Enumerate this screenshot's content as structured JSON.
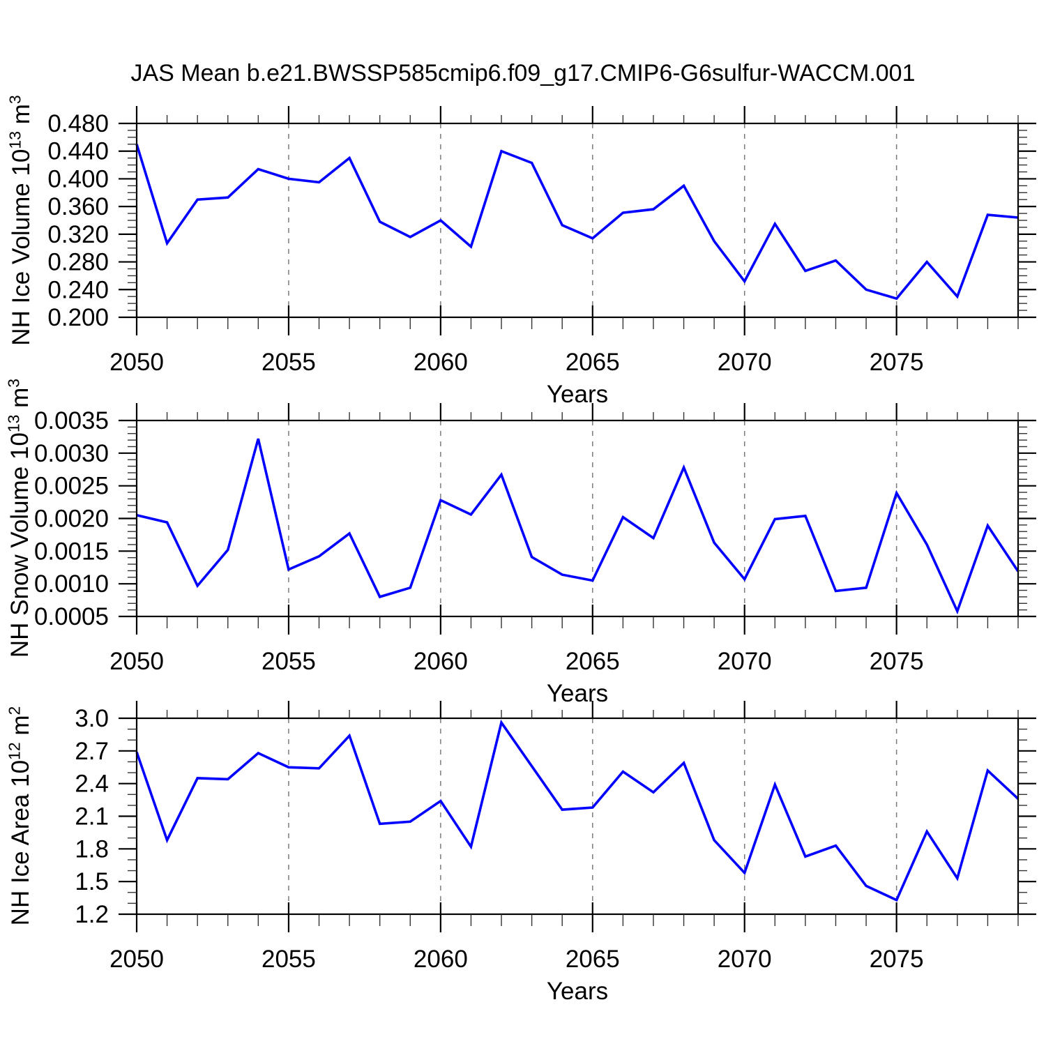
{
  "title": "JAS Mean b.e21.BWSSP585cmip6.f09_g17.CMIP6-G6sulfur-WACCM.001",
  "colors": {
    "line": "#0000ff",
    "grid": "#7b7b7b",
    "axis": "#000000",
    "minor_tick": "#333333"
  },
  "chart_data": [
    {
      "type": "line",
      "name": "nh-ice-volume",
      "ylabel": {
        "base": "NH Ice Volume 10",
        "exp": "13",
        "unit_base": " m",
        "unit_exp": "3"
      },
      "xlabel": "Years",
      "x": [
        2050,
        2051,
        2052,
        2053,
        2054,
        2055,
        2056,
        2057,
        2058,
        2059,
        2060,
        2061,
        2062,
        2063,
        2064,
        2065,
        2066,
        2067,
        2068,
        2069,
        2070,
        2071,
        2072,
        2073,
        2074,
        2075,
        2076,
        2077,
        2078,
        2079
      ],
      "values": [
        0.45,
        0.307,
        0.37,
        0.373,
        0.414,
        0.4,
        0.395,
        0.43,
        0.338,
        0.316,
        0.34,
        0.302,
        0.44,
        0.423,
        0.333,
        0.314,
        0.351,
        0.356,
        0.39,
        0.31,
        0.252,
        0.335,
        0.267,
        0.282,
        0.24,
        0.227,
        0.28,
        0.23,
        0.348,
        0.344
      ],
      "xlim": [
        2050,
        2079
      ],
      "ylim": [
        0.2,
        0.48
      ],
      "yticks": [
        0.2,
        0.24,
        0.28,
        0.32,
        0.36,
        0.4,
        0.44,
        0.48
      ],
      "ytick_labels": [
        "0.200",
        "0.240",
        "0.280",
        "0.320",
        "0.360",
        "0.400",
        "0.440",
        "0.480"
      ],
      "y_minor_step": 0.01,
      "xticks_major": [
        2050,
        2055,
        2060,
        2065,
        2070,
        2075
      ],
      "xtick_labels": [
        "2050",
        "2055",
        "2060",
        "2065",
        "2070",
        "2075"
      ],
      "x_minor_step": 1,
      "gridlines_x": [
        2055,
        2060,
        2065,
        2070,
        2075
      ],
      "grid": true,
      "legend": null
    },
    {
      "type": "line",
      "name": "nh-snow-volume",
      "ylabel": {
        "base": "NH Snow Volume 10",
        "exp": "13",
        "unit_base": " m",
        "unit_exp": "3"
      },
      "xlabel": "Years",
      "x": [
        2050,
        2051,
        2052,
        2053,
        2054,
        2055,
        2056,
        2057,
        2058,
        2059,
        2060,
        2061,
        2062,
        2063,
        2064,
        2065,
        2066,
        2067,
        2068,
        2069,
        2070,
        2071,
        2072,
        2073,
        2074,
        2075,
        2076,
        2077,
        2078,
        2079
      ],
      "values": [
        0.00205,
        0.00194,
        0.00097,
        0.00152,
        0.00322,
        0.00122,
        0.00142,
        0.00177,
        0.0008,
        0.00094,
        0.00228,
        0.00206,
        0.00267,
        0.00141,
        0.00114,
        0.00105,
        0.00202,
        0.0017,
        0.00278,
        0.00163,
        0.00107,
        0.00199,
        0.00204,
        0.00089,
        0.00094,
        0.00239,
        0.0016,
        0.00058,
        0.00189,
        0.00119
      ],
      "xlim": [
        2050,
        2079
      ],
      "ylim": [
        0.0005,
        0.0035
      ],
      "yticks": [
        0.0005,
        0.001,
        0.0015,
        0.002,
        0.0025,
        0.003,
        0.0035
      ],
      "ytick_labels": [
        "0.0005",
        "0.0010",
        "0.0015",
        "0.0020",
        "0.0025",
        "0.0030",
        "0.0035"
      ],
      "y_minor_step": 0.0001,
      "xticks_major": [
        2050,
        2055,
        2060,
        2065,
        2070,
        2075
      ],
      "xtick_labels": [
        "2050",
        "2055",
        "2060",
        "2065",
        "2070",
        "2075"
      ],
      "x_minor_step": 1,
      "gridlines_x": [
        2055,
        2060,
        2065,
        2070,
        2075
      ],
      "grid": true,
      "legend": null
    },
    {
      "type": "line",
      "name": "nh-ice-area",
      "ylabel": {
        "base": "NH Ice Area 10",
        "exp": "12",
        "unit_base": " m",
        "unit_exp": "2"
      },
      "xlabel": "Years",
      "x": [
        2050,
        2051,
        2052,
        2053,
        2054,
        2055,
        2056,
        2057,
        2058,
        2059,
        2060,
        2061,
        2062,
        2063,
        2064,
        2065,
        2066,
        2067,
        2068,
        2069,
        2070,
        2071,
        2072,
        2073,
        2074,
        2075,
        2076,
        2077,
        2078,
        2079
      ],
      "values": [
        2.69,
        1.88,
        2.45,
        2.44,
        2.68,
        2.55,
        2.54,
        2.84,
        2.03,
        2.05,
        2.24,
        1.82,
        2.96,
        2.56,
        2.16,
        2.18,
        2.51,
        2.32,
        2.59,
        1.88,
        1.58,
        2.39,
        1.73,
        1.83,
        1.46,
        1.33,
        1.96,
        1.53,
        2.52,
        2.26
      ],
      "xlim": [
        2050,
        2079
      ],
      "ylim": [
        1.2,
        3.0
      ],
      "yticks": [
        1.2,
        1.5,
        1.8,
        2.1,
        2.4,
        2.7,
        3.0
      ],
      "ytick_labels": [
        "1.2",
        "1.5",
        "1.8",
        "2.1",
        "2.4",
        "2.7",
        "3.0"
      ],
      "y_minor_step": 0.1,
      "xticks_major": [
        2050,
        2055,
        2060,
        2065,
        2070,
        2075
      ],
      "xtick_labels": [
        "2050",
        "2055",
        "2060",
        "2065",
        "2070",
        "2075"
      ],
      "x_minor_step": 1,
      "gridlines_x": [
        2055,
        2060,
        2065,
        2070,
        2075
      ],
      "grid": true,
      "legend": null
    }
  ]
}
